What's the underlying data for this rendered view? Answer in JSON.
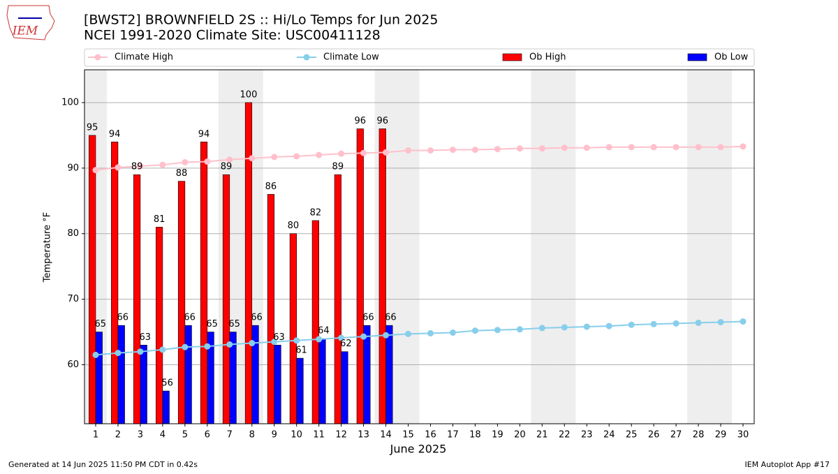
{
  "logo_text": "IEM",
  "footer": {
    "left": "Generated at 14 Jun 2025 11:50 PM CDT in 0.42s",
    "right": "IEM Autoplot App #17"
  },
  "chart_data": {
    "type": "bar",
    "title": "[BWST2] BROWNFIELD 2S :: Hi/Lo Temps for Jun 2025",
    "subtitle": "NCEI 1991-2020 Climate Site: USC00411128",
    "x_label": "June 2025",
    "y_label": "Temperature °F",
    "x": [
      1,
      2,
      3,
      4,
      5,
      6,
      7,
      8,
      9,
      10,
      11,
      12,
      13,
      14,
      15,
      16,
      17,
      18,
      19,
      20,
      21,
      22,
      23,
      24,
      25,
      26,
      27,
      28,
      29,
      30
    ],
    "xlim": [
      0.5,
      30.5
    ],
    "xticks": [
      1,
      2,
      3,
      4,
      5,
      6,
      7,
      8,
      9,
      10,
      11,
      12,
      13,
      14,
      15,
      16,
      17,
      18,
      19,
      20,
      21,
      22,
      23,
      24,
      25,
      26,
      27,
      28,
      29,
      30
    ],
    "ylim": [
      51,
      105
    ],
    "yticks": [
      60,
      70,
      80,
      90,
      100
    ],
    "grid": true,
    "weekend_days": [
      1,
      7,
      8,
      14,
      15,
      21,
      22,
      28,
      29
    ],
    "series": [
      {
        "name": "Climate High",
        "type": "line",
        "color": "#ffc0cb",
        "values": [
          89.7,
          90.1,
          90.3,
          90.5,
          90.9,
          91.0,
          91.3,
          91.5,
          91.7,
          91.8,
          92.0,
          92.2,
          92.3,
          92.4,
          92.7,
          92.7,
          92.8,
          92.8,
          92.9,
          93.0,
          93.0,
          93.1,
          93.1,
          93.2,
          93.2,
          93.2,
          93.2,
          93.2,
          93.2,
          93.3
        ]
      },
      {
        "name": "Climate Low",
        "type": "line",
        "color": "#87ceeb",
        "values": [
          61.5,
          61.8,
          62.0,
          62.3,
          62.7,
          62.8,
          63.1,
          63.3,
          63.5,
          63.7,
          63.9,
          64.1,
          64.3,
          64.5,
          64.7,
          64.8,
          64.9,
          65.2,
          65.3,
          65.4,
          65.6,
          65.7,
          65.8,
          65.9,
          66.1,
          66.2,
          66.3,
          66.4,
          66.5,
          66.6
        ]
      },
      {
        "name": "Ob High",
        "type": "bar",
        "color": "#ff0000",
        "values": [
          95,
          94,
          89,
          81,
          88,
          94,
          89,
          100,
          86,
          80,
          82,
          89,
          96,
          96,
          null,
          null,
          null,
          null,
          null,
          null,
          null,
          null,
          null,
          null,
          null,
          null,
          null,
          null,
          null,
          null
        ]
      },
      {
        "name": "Ob Low",
        "type": "bar",
        "color": "#0000ff",
        "values": [
          65,
          66,
          63,
          56,
          66,
          65,
          65,
          66,
          63,
          61,
          64,
          62,
          66,
          66,
          null,
          null,
          null,
          null,
          null,
          null,
          null,
          null,
          null,
          null,
          null,
          null,
          null,
          null,
          null,
          null
        ]
      }
    ]
  }
}
